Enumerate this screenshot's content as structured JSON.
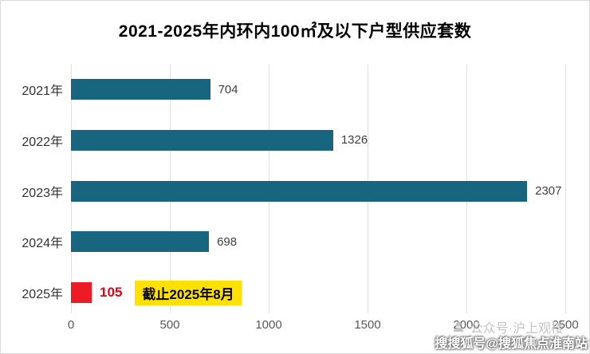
{
  "chart_data": {
    "type": "bar",
    "orientation": "horizontal",
    "title": "2021-2025年内环内100㎡及以下户型供应套数",
    "categories": [
      "2021年",
      "2022年",
      "2023年",
      "2024年",
      "2025年"
    ],
    "values": [
      704,
      1326,
      2307,
      698,
      105
    ],
    "bar_color": "#17657f",
    "highlight_index": 4,
    "highlight_bar_color": "#ed1c24",
    "value_label_color": "#404040",
    "highlight_value_color": "#e60012",
    "annotation": {
      "row_index": 4,
      "text": "截止2025年8月",
      "bg": "#ffe100",
      "color": "#000000"
    },
    "xlim": [
      0,
      2500
    ],
    "xticks": [
      0,
      500,
      1000,
      1500,
      2000,
      2500
    ],
    "grid": "vertical",
    "legend": "none",
    "xlabel": "",
    "ylabel": ""
  },
  "watermarks": {
    "account": "公众号·沪上观楼",
    "corner": "搜搜狐号@搜狐焦点淮南站"
  }
}
